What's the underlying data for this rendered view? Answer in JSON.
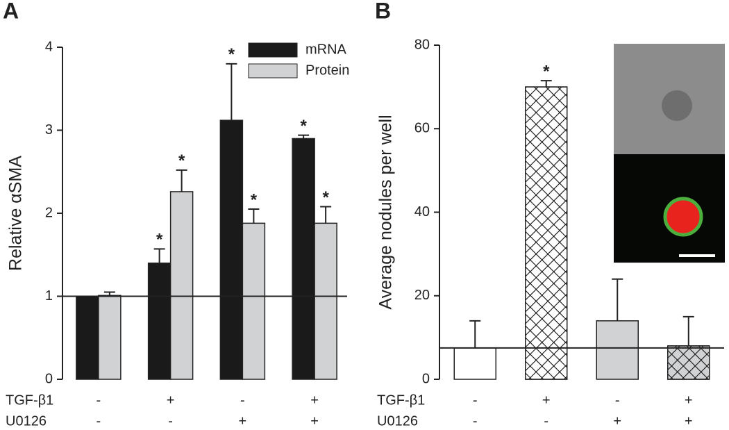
{
  "chart_data": [
    {
      "type": "bar",
      "panel": "A",
      "ylabel": "Relative αSMA",
      "ylim": [
        0,
        4
      ],
      "yticks": [
        0,
        1,
        2,
        3,
        4
      ],
      "reference_line": 1,
      "legend": "top-right",
      "series": [
        {
          "name": "mRNA",
          "color": "#1a1a1a",
          "values": [
            1,
            1.4,
            3.12,
            2.9
          ],
          "errors": [
            0,
            0.17,
            0.68,
            0.04
          ],
          "significance": [
            null,
            "*",
            "*",
            "*"
          ]
        },
        {
          "name": "Protein",
          "color": "#d0d2d4",
          "values": [
            1.01,
            2.26,
            1.88,
            1.88
          ],
          "errors": [
            0.04,
            0.26,
            0.17,
            0.2
          ],
          "significance": [
            null,
            "*",
            "*",
            "*"
          ]
        }
      ],
      "conditions": [
        {
          "label": "TGF-β1",
          "values": [
            "-",
            "+",
            "-",
            "+"
          ]
        },
        {
          "label": "U0126",
          "values": [
            "-",
            "-",
            "+",
            "+"
          ]
        }
      ]
    },
    {
      "type": "bar",
      "panel": "B",
      "ylabel": "Average nodules per well",
      "ylim": [
        0,
        80
      ],
      "yticks": [
        0,
        20,
        40,
        60,
        80
      ],
      "reference_line": 7.5,
      "values": [
        7.5,
        70,
        14,
        8
      ],
      "errors": [
        6.5,
        1.5,
        10,
        7
      ],
      "significance": [
        null,
        "*",
        null,
        null
      ],
      "colors": [
        "#ffffff",
        "#ffffff",
        "#d0d2d4",
        "#d0d2d4"
      ],
      "hatch": [
        false,
        true,
        false,
        true
      ],
      "conditions": [
        {
          "label": "TGF-β1",
          "values": [
            "-",
            "+",
            "-",
            "+"
          ]
        },
        {
          "label": "U0126",
          "values": [
            "-",
            "-",
            "+",
            "+"
          ]
        }
      ]
    }
  ]
}
